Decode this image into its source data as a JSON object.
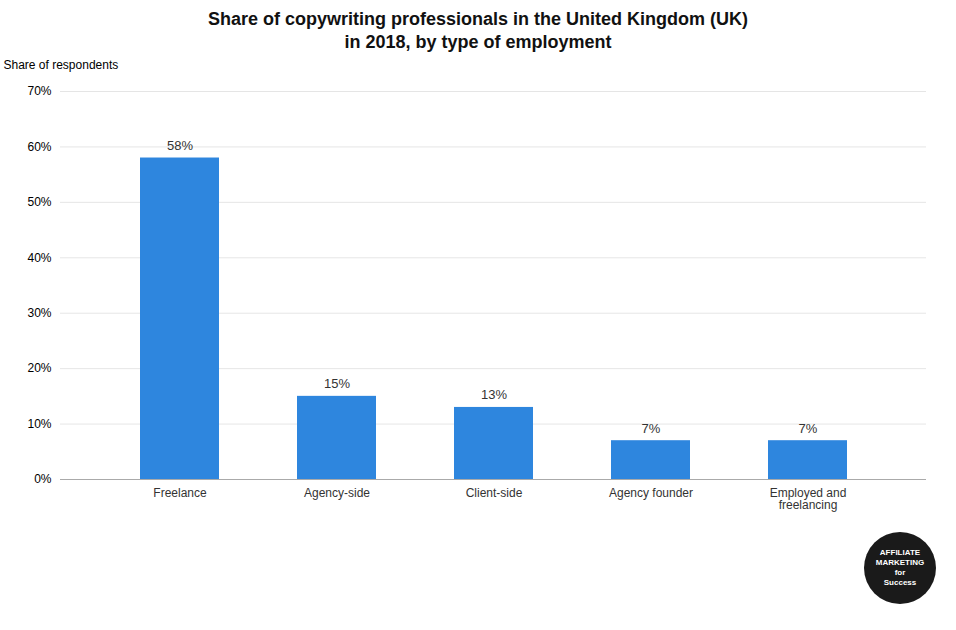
{
  "chart_data": {
    "type": "bar",
    "title": "Share of copywriting professionals in the United Kingdom (UK)\nin 2018, by type of employment",
    "categories": [
      "Freelance",
      "Agency-side",
      "Client-side",
      "Agency founder",
      "Employed and\nfreelancing"
    ],
    "values": [
      58,
      15,
      13,
      7,
      7
    ],
    "value_labels": [
      "58%",
      "15%",
      "13%",
      "7%",
      "7%"
    ],
    "data_labels": true,
    "color": "#2e86de",
    "ylabel": "Share of respondents",
    "ylim": [
      0,
      70
    ],
    "yticks": [
      {
        "value": 0,
        "label": "0%"
      },
      {
        "value": 10,
        "label": "10%"
      },
      {
        "value": 20,
        "label": "20%"
      },
      {
        "value": 30,
        "label": "30%"
      },
      {
        "value": 40,
        "label": "40%"
      },
      {
        "value": 50,
        "label": "50%"
      },
      {
        "value": 60,
        "label": "60%"
      },
      {
        "value": 70,
        "label": "70%"
      }
    ],
    "grid": true,
    "annotations": [
      "AFFILIATE",
      "MARKETING",
      "for",
      "Success"
    ]
  }
}
